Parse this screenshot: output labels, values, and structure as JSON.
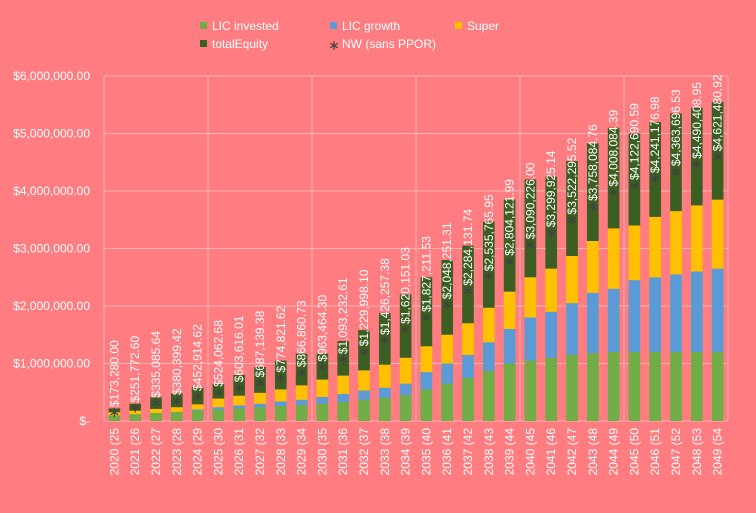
{
  "chart_data": {
    "type": "stacked-bar",
    "categories": [
      "2020 (25",
      "2021 (26",
      "2022 (27",
      "2023 (28",
      "2024 (29",
      "2025 (30",
      "2026 (31",
      "2027 (32",
      "2028 (33",
      "2029 (34",
      "2030 (35",
      "2031 (36",
      "2032 (37",
      "2033 (38",
      "2034 (39",
      "2035 (40",
      "2036 (41",
      "2037 (42",
      "2038 (43",
      "2039 (44",
      "2040 (45",
      "2041 (46",
      "2042 (47",
      "2043 (48",
      "2044 (49",
      "2045 (50",
      "2046 (51",
      "2047 (52",
      "2048 (53",
      "2049 (54"
    ],
    "series": [
      {
        "name": "LIC invested",
        "color": "#70ad47",
        "kind": "bar",
        "values": [
          100000,
          120000,
          140000,
          160000,
          180000,
          200000,
          220000,
          240000,
          260000,
          280000,
          300000,
          330000,
          370000,
          400000,
          450000,
          550000,
          650000,
          750000,
          870000,
          1000000,
          1050000,
          1100000,
          1150000,
          1180000,
          1200000,
          1200000,
          1200000,
          1200000,
          1200000,
          1200000
        ]
      },
      {
        "name": "LIC growth",
        "color": "#5b9bd5",
        "kind": "bar",
        "values": [
          0,
          0,
          0,
          0,
          20000,
          40000,
          50000,
          60000,
          80000,
          90000,
          120000,
          140000,
          160000,
          180000,
          200000,
          300000,
          350000,
          400000,
          500000,
          600000,
          750000,
          800000,
          900000,
          1050000,
          1100000,
          1250000,
          1300000,
          1350000,
          1400000,
          1450000
        ]
      },
      {
        "name": "Super",
        "color": "#ffc000",
        "kind": "bar",
        "values": [
          50000,
          60000,
          70000,
          80000,
          90000,
          150000,
          170000,
          190000,
          210000,
          250000,
          300000,
          320000,
          350000,
          400000,
          450000,
          450000,
          500000,
          550000,
          600000,
          650000,
          700000,
          750000,
          820000,
          900000,
          1050000,
          950000,
          1050000,
          1100000,
          1150000,
          1200000
        ]
      },
      {
        "name": "totalEquity",
        "color": "#3b5e22",
        "kind": "bar",
        "values": [
          70000,
          120000,
          200000,
          240000,
          300000,
          250000,
          360000,
          450000,
          500000,
          550000,
          450000,
          600000,
          700000,
          900000,
          1100000,
          1200000,
          1300000,
          1350000,
          1500000,
          1600000,
          1700000,
          1600000,
          1650000,
          1700000,
          1750000,
          1600000,
          1650000,
          1700000,
          1700000,
          1700000
        ]
      },
      {
        "name": "NW (sans PPOR)",
        "color": "#404040",
        "kind": "marker",
        "values": [
          173280.0,
          251772.6,
          335085.64,
          380399.42,
          452914.62,
          524062.68,
          603616.01,
          687139.38,
          774821.62,
          866860.73,
          963464.3,
          1093232.61,
          1229998.1,
          1426257.38,
          1620151.03,
          1827211.53,
          2048251.31,
          2284131.74,
          2535765.95,
          2804121.99,
          3090226.0,
          3299925.14,
          3522295.52,
          3758084.76,
          4008084.39,
          4122690.59,
          4241176.98,
          4363696.53,
          4490408.95,
          4621480.92
        ],
        "value_labels": [
          "$173,280.00",
          "$251,772.60",
          "$335,085.64",
          "$380,399.42",
          "$452,914.62",
          "$524,062.68",
          "$603,616.01",
          "$687,139.38",
          "$774,821.62",
          "$866,860.73",
          "$963,464.30",
          "$1,093,232.61",
          "$1,229,998.10",
          "$1,426,257.38",
          "$1,620,151.03",
          "$1,827,211.53",
          "$2,048,251.31",
          "$2,284,131.74",
          "$2,535,765.95",
          "$2,804,121.99",
          "$3,090,226.00",
          "$3,299,925.14",
          "$3,522,295.52",
          "$3,758,084.76",
          "$4,008,084.39",
          "$4,122,690.59",
          "$4,241,176.98",
          "$4,363,696.53",
          "$4,490,408.95",
          "$4,621,480.92"
        ]
      }
    ],
    "ylim": [
      0,
      6000000
    ],
    "yticks": [
      {
        "value": 0,
        "label": "$-"
      },
      {
        "value": 1000000,
        "label": "$1,000,000.00"
      },
      {
        "value": 2000000,
        "label": "$2,000,000.00"
      },
      {
        "value": 3000000,
        "label": "$3,000,000.00"
      },
      {
        "value": 4000000,
        "label": "$4,000,000.00"
      },
      {
        "value": 5000000,
        "label": "$5,000,000.00"
      },
      {
        "value": 6000000,
        "label": "$6,000,000.00"
      }
    ],
    "grid": true
  }
}
